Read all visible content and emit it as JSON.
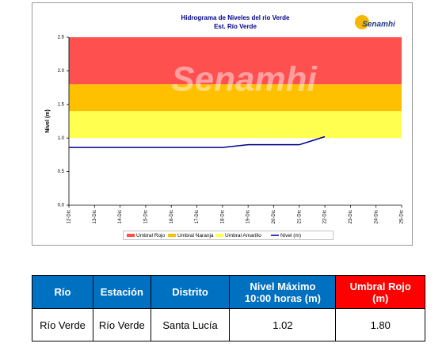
{
  "chart_data": {
    "type": "line",
    "title": "Hidrograma de Niveles del rio Verde",
    "subtitle": "Est. Río Verde",
    "logo_text": "Senamhi",
    "watermark": "Senamhi",
    "y_label": "Nivel (m)",
    "categories": [
      "12-Dic",
      "13-Dic",
      "14-Dic",
      "15-Dic",
      "16-Dic",
      "17-Dic",
      "18-Dic",
      "19-Dic",
      "20-Dic",
      "21-Dic",
      "22-Dic",
      "23-Dic",
      "24-Dic",
      "25-Dic"
    ],
    "ylim": [
      0,
      2.5
    ],
    "yticks": [
      {
        "value": 0,
        "label": "0.0"
      },
      0.5,
      {
        "value": 1,
        "label": "1.0"
      },
      1.5,
      {
        "value": 2,
        "label": "2.0"
      },
      2.5
    ],
    "thresholds": [
      {
        "name": "Umbral Rojo",
        "color": "#ff5050",
        "range": [
          1.8,
          2.5
        ]
      },
      {
        "name": "Umbral Naranja",
        "color": "#ffc000",
        "range": [
          1.4,
          1.8
        ]
      },
      {
        "name": "Umbral Amarillo",
        "color": "#ffff50",
        "range": [
          1.0,
          1.4
        ]
      }
    ],
    "series": [
      {
        "name": "Nivel (m)",
        "color": "#00008b",
        "values": [
          0.86,
          0.86,
          0.86,
          0.86,
          0.86,
          0.86,
          0.86,
          0.9,
          0.9,
          0.9,
          1.02,
          null,
          null,
          null
        ]
      }
    ]
  },
  "table": {
    "header": [
      "Río",
      "Estación",
      "Distrito",
      "Nivel Máximo\n10:00 horas (m)",
      "Umbral Rojo\n(m)"
    ],
    "rows": [
      [
        "Río Verde",
        "Río Verde",
        "Santa Lucía",
        "1.02",
        "1.80"
      ]
    ]
  }
}
